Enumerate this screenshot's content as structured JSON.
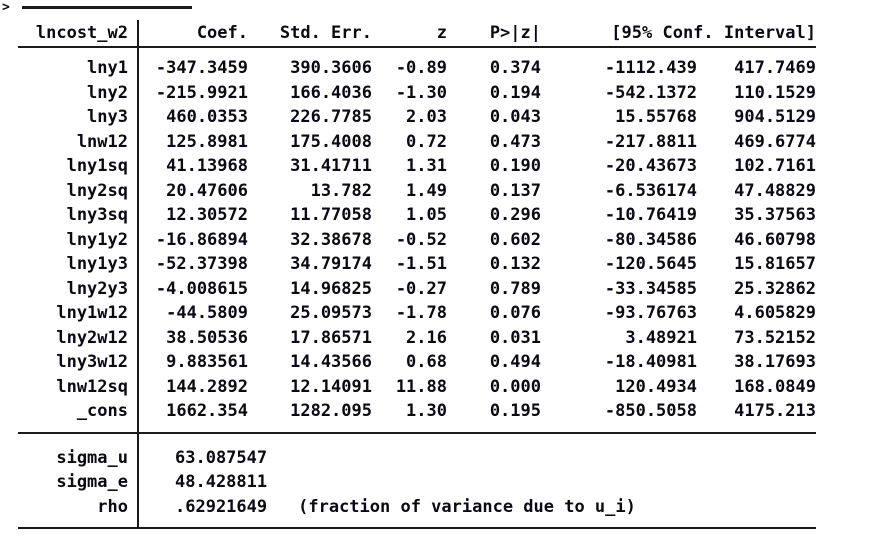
{
  "continuation": {
    "marker": ">"
  },
  "colors": {
    "text": "#0a0a14",
    "background": "#ffffff",
    "rule": "#1a1a1a"
  },
  "table": {
    "header": {
      "depvar": "lncost_w2",
      "coef": "Coef.",
      "std_err": "Std. Err.",
      "z": "z",
      "p": "P>|z|",
      "ci": "[95% Conf. Interval]"
    },
    "rows": [
      {
        "name": "lny1",
        "coef": "-347.3459",
        "se": "390.3606",
        "z": "-0.89",
        "p": "0.374",
        "lo": "-1112.439",
        "hi": "417.7469"
      },
      {
        "name": "lny2",
        "coef": "-215.9921",
        "se": "166.4036",
        "z": "-1.30",
        "p": "0.194",
        "lo": "-542.1372",
        "hi": "110.1529"
      },
      {
        "name": "lny3",
        "coef": "460.0353",
        "se": "226.7785",
        "z": "2.03",
        "p": "0.043",
        "lo": "15.55768",
        "hi": "904.5129"
      },
      {
        "name": "lnw12",
        "coef": "125.8981",
        "se": "175.4008",
        "z": "0.72",
        "p": "0.473",
        "lo": "-217.8811",
        "hi": "469.6774"
      },
      {
        "name": "lny1sq",
        "coef": "41.13968",
        "se": "31.41711",
        "z": "1.31",
        "p": "0.190",
        "lo": "-20.43673",
        "hi": "102.7161"
      },
      {
        "name": "lny2sq",
        "coef": "20.47606",
        "se": "13.782",
        "z": "1.49",
        "p": "0.137",
        "lo": "-6.536174",
        "hi": "47.48829"
      },
      {
        "name": "lny3sq",
        "coef": "12.30572",
        "se": "11.77058",
        "z": "1.05",
        "p": "0.296",
        "lo": "-10.76419",
        "hi": "35.37563"
      },
      {
        "name": "lny1y2",
        "coef": "-16.86894",
        "se": "32.38678",
        "z": "-0.52",
        "p": "0.602",
        "lo": "-80.34586",
        "hi": "46.60798"
      },
      {
        "name": "lny1y3",
        "coef": "-52.37398",
        "se": "34.79174",
        "z": "-1.51",
        "p": "0.132",
        "lo": "-120.5645",
        "hi": "15.81657"
      },
      {
        "name": "lny2y3",
        "coef": "-4.008615",
        "se": "14.96825",
        "z": "-0.27",
        "p": "0.789",
        "lo": "-33.34585",
        "hi": "25.32862"
      },
      {
        "name": "lny1w12",
        "coef": "-44.5809",
        "se": "25.09573",
        "z": "-1.78",
        "p": "0.076",
        "lo": "-93.76763",
        "hi": "4.605829"
      },
      {
        "name": "lny2w12",
        "coef": "38.50536",
        "se": "17.86571",
        "z": "2.16",
        "p": "0.031",
        "lo": "3.48921",
        "hi": "73.52152"
      },
      {
        "name": "lny3w12",
        "coef": "9.883561",
        "se": "14.43566",
        "z": "0.68",
        "p": "0.494",
        "lo": "-18.40981",
        "hi": "38.17693"
      },
      {
        "name": "lnw12sq",
        "coef": "144.2892",
        "se": "12.14091",
        "z": "11.88",
        "p": "0.000",
        "lo": "120.4934",
        "hi": "168.0849"
      },
      {
        "name": "_cons",
        "coef": "1662.354",
        "se": "1282.095",
        "z": "1.30",
        "p": "0.195",
        "lo": "-850.5058",
        "hi": "4175.213"
      }
    ],
    "stats": [
      {
        "name": "sigma_u",
        "value": "63.087547",
        "note": ""
      },
      {
        "name": "sigma_e",
        "value": "48.428811",
        "note": ""
      },
      {
        "name": "rho",
        "value": ".62921649",
        "note": "(fraction of variance due to u_i)"
      }
    ]
  }
}
